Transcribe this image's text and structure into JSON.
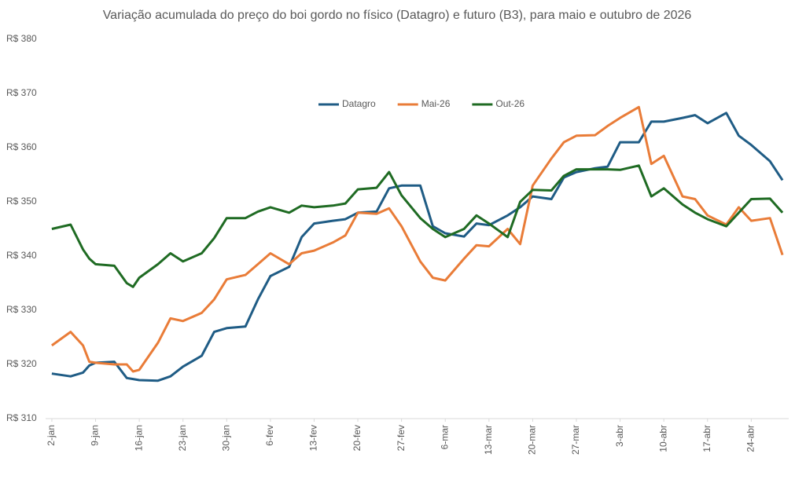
{
  "chart_data": {
    "type": "line",
    "title": "Variação acumulada do preço do boi gordo no físico (Datagro) e futuro (B3), para maio e outubro de 2026",
    "x": [
      2,
      5,
      7,
      8,
      9,
      12,
      14,
      15,
      16,
      19,
      21,
      23,
      26,
      28,
      30,
      33,
      35,
      37,
      40,
      42,
      44,
      47,
      49,
      51,
      54,
      56,
      58,
      61,
      63,
      65,
      68,
      70,
      72,
      75,
      77,
      79,
      82,
      84,
      86,
      89,
      91,
      93,
      96,
      98,
      100,
      103,
      105,
      107,
      110,
      112,
      114,
      117,
      119
    ],
    "xlim": [
      1,
      120
    ],
    "xticks": [
      {
        "value": 2,
        "label": "2-jan"
      },
      {
        "value": 9,
        "label": "9-jan"
      },
      {
        "value": 16,
        "label": "16-jan"
      },
      {
        "value": 23,
        "label": "23-jan"
      },
      {
        "value": 30,
        "label": "30-jan"
      },
      {
        "value": 37,
        "label": "6-fev"
      },
      {
        "value": 44,
        "label": "13-fev"
      },
      {
        "value": 51,
        "label": "20-fev"
      },
      {
        "value": 58,
        "label": "27-fev"
      },
      {
        "value": 65,
        "label": "6-mar"
      },
      {
        "value": 72,
        "label": "13-mar"
      },
      {
        "value": 79,
        "label": "20-mar"
      },
      {
        "value": 86,
        "label": "27-mar"
      },
      {
        "value": 93,
        "label": "3-abr"
      },
      {
        "value": 100,
        "label": "10-abr"
      },
      {
        "value": 107,
        "label": "17-abr"
      },
      {
        "value": 114,
        "label": "24-abr"
      }
    ],
    "ylim": [
      310,
      380
    ],
    "yticks": [
      {
        "value": 310,
        "label": "R$ 310"
      },
      {
        "value": 320,
        "label": "R$ 320"
      },
      {
        "value": 330,
        "label": "R$ 330"
      },
      {
        "value": 340,
        "label": "R$ 340"
      },
      {
        "value": 350,
        "label": "R$ 350"
      },
      {
        "value": 360,
        "label": "R$ 360"
      },
      {
        "value": 370,
        "label": "R$ 370"
      },
      {
        "value": 380,
        "label": "R$ 380"
      }
    ],
    "grid": false,
    "legend": "top",
    "series": [
      {
        "name": "Datagro",
        "color": "#1f5c85",
        "values": [
          318.3,
          317.8,
          318.5,
          319.8,
          320.3,
          320.5,
          317.5,
          317.3,
          317.1,
          317.0,
          317.8,
          319.6,
          321.6,
          326.0,
          326.7,
          327.0,
          332.0,
          336.3,
          338.0,
          343.5,
          346.0,
          346.5,
          346.8,
          348.0,
          348.2,
          352.5,
          353.0,
          353.0,
          345.5,
          344.2,
          343.6,
          346.0,
          345.7,
          347.5,
          349.0,
          351.0,
          350.5,
          354.5,
          355.5,
          356.2,
          356.5,
          361.0,
          361.0,
          364.8,
          364.8,
          365.5,
          366.0,
          364.5,
          366.4,
          362.2,
          360.5,
          357.5,
          354.0
        ]
      },
      {
        "name": "Mai-26",
        "color": "#e97c38",
        "values": [
          323.5,
          326.0,
          323.5,
          320.5,
          320.3,
          320.0,
          320.0,
          318.7,
          319.0,
          324.0,
          328.5,
          328.0,
          329.5,
          332.0,
          335.7,
          336.5,
          338.5,
          340.5,
          338.5,
          340.5,
          341.0,
          342.5,
          343.8,
          348.0,
          347.8,
          348.8,
          345.5,
          339.0,
          336.0,
          335.5,
          339.5,
          342.0,
          341.8,
          345.0,
          342.2,
          353.0,
          358.0,
          361.0,
          362.2,
          362.3,
          364.0,
          365.5,
          367.5,
          357.0,
          358.5,
          351.0,
          350.5,
          347.5,
          345.8,
          349.0,
          346.5,
          347.0,
          340.2
        ]
      },
      {
        "name": "Out-26",
        "color": "#1f6b23",
        "values": [
          345.0,
          345.8,
          341.2,
          339.5,
          338.5,
          338.2,
          335.0,
          334.3,
          336.0,
          338.5,
          340.5,
          339.0,
          340.5,
          343.3,
          347.0,
          347.0,
          348.2,
          349.0,
          348.0,
          349.3,
          349.0,
          349.3,
          349.7,
          352.3,
          352.6,
          355.5,
          351.2,
          347.0,
          345.0,
          343.5,
          345.0,
          347.5,
          346.0,
          343.5,
          350.0,
          352.2,
          352.1,
          354.8,
          356.0,
          356.0,
          356.0,
          355.9,
          356.7,
          351.0,
          352.5,
          349.5,
          348.0,
          346.8,
          345.5,
          348.0,
          350.5,
          350.6,
          348.0
        ]
      }
    ]
  }
}
